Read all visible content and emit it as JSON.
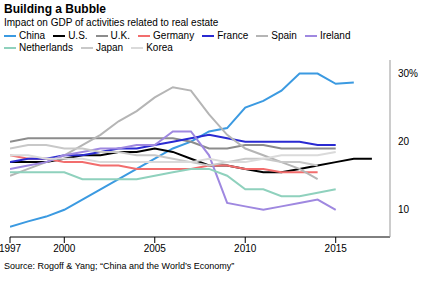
{
  "chart_data": {
    "type": "line",
    "title": "Building a Bubble",
    "subtitle": "Impact on GDP of activities related to real estate",
    "source": "Source: Rogoff & Yang; “China and the World’s Economy”",
    "x": [
      1997,
      1998,
      1999,
      2000,
      2001,
      2002,
      2003,
      2004,
      2005,
      2006,
      2007,
      2008,
      2009,
      2010,
      2011,
      2012,
      2013,
      2014,
      2015,
      2016,
      2017
    ],
    "xlim": [
      1997,
      2018
    ],
    "xticks": [
      1997,
      2000,
      2005,
      2010,
      2015
    ],
    "ylim": [
      6,
      32
    ],
    "yticks": [
      10,
      20,
      {
        "value": 30,
        "label": "30%"
      }
    ],
    "grid": false,
    "legend": "top-left",
    "series": [
      {
        "name": "China",
        "color": "#3b9ae1",
        "values": [
          7.5,
          8.3,
          9,
          10,
          11.5,
          13,
          14.5,
          16,
          17.5,
          19,
          20,
          21.5,
          22,
          25,
          26,
          27.5,
          30,
          30,
          28.5,
          28.7,
          null
        ]
      },
      {
        "name": "U.S.",
        "color": "#000000",
        "values": [
          17,
          17,
          17,
          17.5,
          18,
          18,
          18.5,
          18.5,
          19,
          18.5,
          17.5,
          16.5,
          16.5,
          16,
          15.5,
          15.5,
          16,
          16.5,
          17,
          17.5,
          17.5
        ]
      },
      {
        "name": "U.K.",
        "color": "#8c8c8c",
        "values": [
          20,
          20.5,
          20.5,
          20.5,
          20.5,
          20.5,
          20.5,
          20.5,
          20.5,
          20.5,
          20,
          19,
          19,
          19.5,
          19.5,
          19,
          19,
          19,
          19,
          null,
          null
        ]
      },
      {
        "name": "Germany",
        "color": "#f26d6d",
        "values": [
          18,
          17.5,
          17.5,
          17,
          17,
          16.5,
          16.5,
          16,
          16,
          16,
          16,
          16.5,
          16.5,
          16,
          16,
          15.5,
          15.5,
          15.5,
          null,
          null,
          null
        ]
      },
      {
        "name": "France",
        "color": "#2a2ad1",
        "values": [
          17,
          17.5,
          17.5,
          18,
          18,
          18.5,
          19,
          19,
          19.5,
          20,
          20.5,
          21,
          20.5,
          20,
          20,
          20,
          20,
          19.5,
          19.5,
          null,
          null
        ]
      },
      {
        "name": "Spain",
        "color": "#b5b5b5",
        "values": [
          15,
          16,
          17,
          18,
          19.5,
          21,
          23,
          24.5,
          26.5,
          28,
          27.5,
          24,
          21,
          19,
          18,
          17,
          16,
          14.5,
          null,
          null,
          null
        ]
      },
      {
        "name": "Ireland",
        "color": "#9f88e0",
        "values": [
          16,
          16.5,
          17,
          18,
          18.5,
          19,
          19,
          19.5,
          19.5,
          21.5,
          21.5,
          18,
          11,
          10.5,
          10,
          10.5,
          11,
          11.5,
          10,
          null,
          null
        ]
      },
      {
        "name": "Netherlands",
        "color": "#8fd1bd",
        "values": [
          15.5,
          15.5,
          15.5,
          15.5,
          14.5,
          14.5,
          14.5,
          14.5,
          15,
          15.5,
          16,
          16,
          15,
          13,
          13,
          12,
          12,
          12.5,
          13,
          null,
          null
        ]
      },
      {
        "name": "Japan",
        "color": "#c8c8c8",
        "values": [
          19,
          19.5,
          19.5,
          19,
          19,
          18.5,
          18.5,
          18,
          18,
          17.5,
          17,
          16.5,
          17,
          17.5,
          17.5,
          17,
          17,
          16.5,
          null,
          null,
          null
        ]
      },
      {
        "name": "Korea",
        "color": "#dadada",
        "values": [
          18,
          18,
          17.5,
          17.5,
          17.5,
          17,
          17,
          17,
          17,
          17,
          17,
          17.5,
          17,
          17,
          17.5,
          18,
          18,
          18,
          18.5,
          null,
          null
        ]
      }
    ]
  }
}
